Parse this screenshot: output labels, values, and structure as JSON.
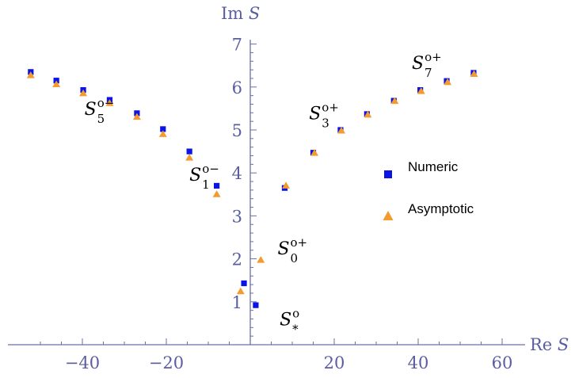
{
  "chart_data": {
    "type": "scatter",
    "xlabel": "Re S",
    "ylabel": "Im S",
    "xlim": [
      -53,
      63
    ],
    "ylim": [
      0,
      7.1
    ],
    "x_ticks": [
      -40,
      -20,
      20,
      40,
      60
    ],
    "x_tick_labels": [
      "−40",
      "−20",
      "20",
      "40",
      "60"
    ],
    "y_ticks": [
      1,
      2,
      3,
      4,
      5,
      6,
      7
    ],
    "y_tick_labels": [
      "1",
      "2",
      "3",
      "4",
      "5",
      "6",
      "7"
    ],
    "legend_position": "right",
    "series": [
      {
        "name": "Numeric",
        "marker": "square",
        "color": "#0a14e6",
        "x": [
          -52.3,
          -46.2,
          -39.8,
          -33.5,
          -27.0,
          -20.8,
          -14.5,
          -8.0,
          -1.5,
          1.3,
          8.2,
          15.0,
          21.5,
          27.8,
          34.2,
          40.5,
          46.8,
          53.2
        ],
        "y": [
          6.35,
          6.15,
          5.93,
          5.7,
          5.39,
          5.02,
          4.5,
          3.7,
          1.43,
          0.92,
          3.65,
          4.47,
          5.0,
          5.37,
          5.68,
          5.93,
          6.14,
          6.33
        ]
      },
      {
        "name": "Asymptotic",
        "marker": "triangle",
        "color": "#f39b2c",
        "x": [
          -52.3,
          -46.2,
          -39.8,
          -33.5,
          -27.0,
          -20.8,
          -14.5,
          -8.0,
          -2.3,
          2.5,
          8.5,
          15.3,
          21.7,
          28.0,
          34.4,
          40.7,
          47.0,
          53.3
        ],
        "y": [
          6.27,
          6.06,
          5.85,
          5.62,
          5.3,
          4.9,
          4.35,
          3.5,
          1.24,
          1.97,
          3.7,
          4.46,
          4.98,
          5.35,
          5.67,
          5.9,
          6.11,
          6.3
        ]
      }
    ],
    "annotations": [
      {
        "base": "S",
        "sup": "o−",
        "sub": "5",
        "x": -39.5,
        "y": 5.35
      },
      {
        "base": "S",
        "sup": "o−",
        "sub": "1",
        "x": -14.5,
        "y": 3.82
      },
      {
        "base": "S",
        "sup": "o+",
        "sub": "3",
        "x": 14.0,
        "y": 5.25
      },
      {
        "base": "S",
        "sup": "o+",
        "sub": "7",
        "x": 38.5,
        "y": 6.42
      },
      {
        "base": "S",
        "sup": "o+",
        "sub": "0",
        "x": 6.5,
        "y": 2.1
      },
      {
        "base": "S",
        "sup": "o",
        "sub": "*",
        "x": 7.0,
        "y": 0.45
      }
    ]
  }
}
